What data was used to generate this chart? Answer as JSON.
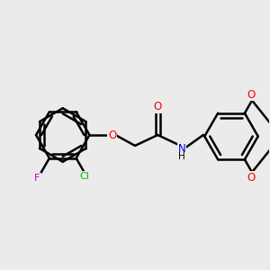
{
  "background_color": "#ebebeb",
  "bond_color": "#000000",
  "atom_colors": {
    "O": "#ff0000",
    "N": "#0000cc",
    "Cl": "#00bb00",
    "F": "#cc00cc",
    "C": "#000000",
    "H": "#000000"
  },
  "figsize": [
    3.0,
    3.0
  ],
  "dpi": 100,
  "xlim": [
    0.0,
    10.0
  ],
  "ylim": [
    1.5,
    8.5
  ]
}
